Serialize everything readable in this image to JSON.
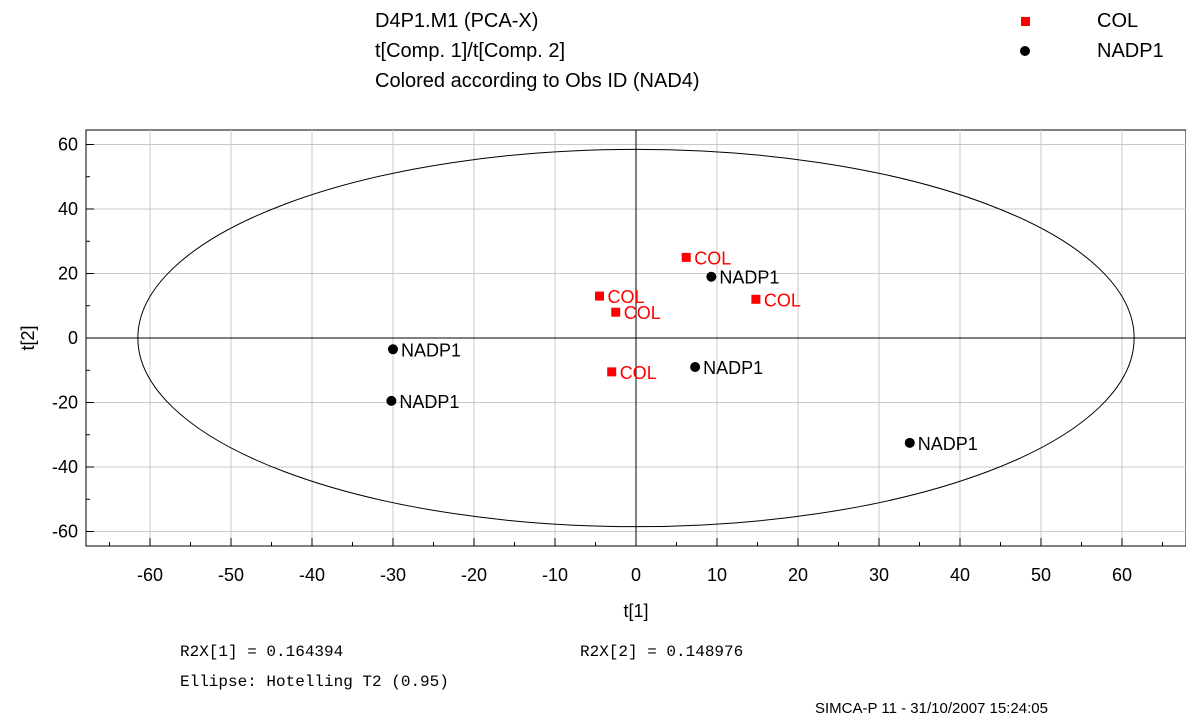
{
  "chart_data": {
    "type": "scatter",
    "title": [
      "D4P1.M1 (PCA-X)",
      "t[Comp. 1]/t[Comp. 2]",
      "Colored according to Obs ID (NAD4)"
    ],
    "xlabel": "t[1]",
    "ylabel": "t[2]",
    "xlim": [
      -66,
      66
    ],
    "ylim": [
      -64,
      64
    ],
    "xticks": [
      -60,
      -50,
      -40,
      -30,
      -20,
      -10,
      0,
      10,
      20,
      30,
      40,
      50,
      60
    ],
    "yticks": [
      60,
      40,
      20,
      0,
      -20,
      -40,
      -60
    ],
    "grid": true,
    "legend_position": "top-right",
    "ellipse": {
      "semi_axis_x": 61.5,
      "semi_axis_y": 58.5
    },
    "series": [
      {
        "name": "COL",
        "color": "#ff0000",
        "marker": "square",
        "points": [
          {
            "x": 6.2,
            "y": 25,
            "label": "COL"
          },
          {
            "x": -4.5,
            "y": 13,
            "label": "COL"
          },
          {
            "x": -2.5,
            "y": 8,
            "label": "COL"
          },
          {
            "x": 14.8,
            "y": 12,
            "label": "COL"
          },
          {
            "x": -3,
            "y": -10.5,
            "label": "COL"
          }
        ]
      },
      {
        "name": "NADP1",
        "color": "#000000",
        "marker": "circle",
        "points": [
          {
            "x": 9.3,
            "y": 19,
            "label": "NADP1"
          },
          {
            "x": -30,
            "y": -3.5,
            "label": "NADP1"
          },
          {
            "x": -30.2,
            "y": -19.5,
            "label": "NADP1"
          },
          {
            "x": 7.3,
            "y": -9,
            "label": "NADP1"
          },
          {
            "x": 33.8,
            "y": -32.5,
            "label": "NADP1"
          }
        ]
      }
    ]
  },
  "footer": {
    "r2x1": "R2X[1] = 0.164394",
    "r2x2": "R2X[2] = 0.148976",
    "ellipse_note": "Ellipse: Hotelling T2 (0.95)",
    "credit": "SIMCA-P 11 - 31/10/2007 15:24:05"
  }
}
